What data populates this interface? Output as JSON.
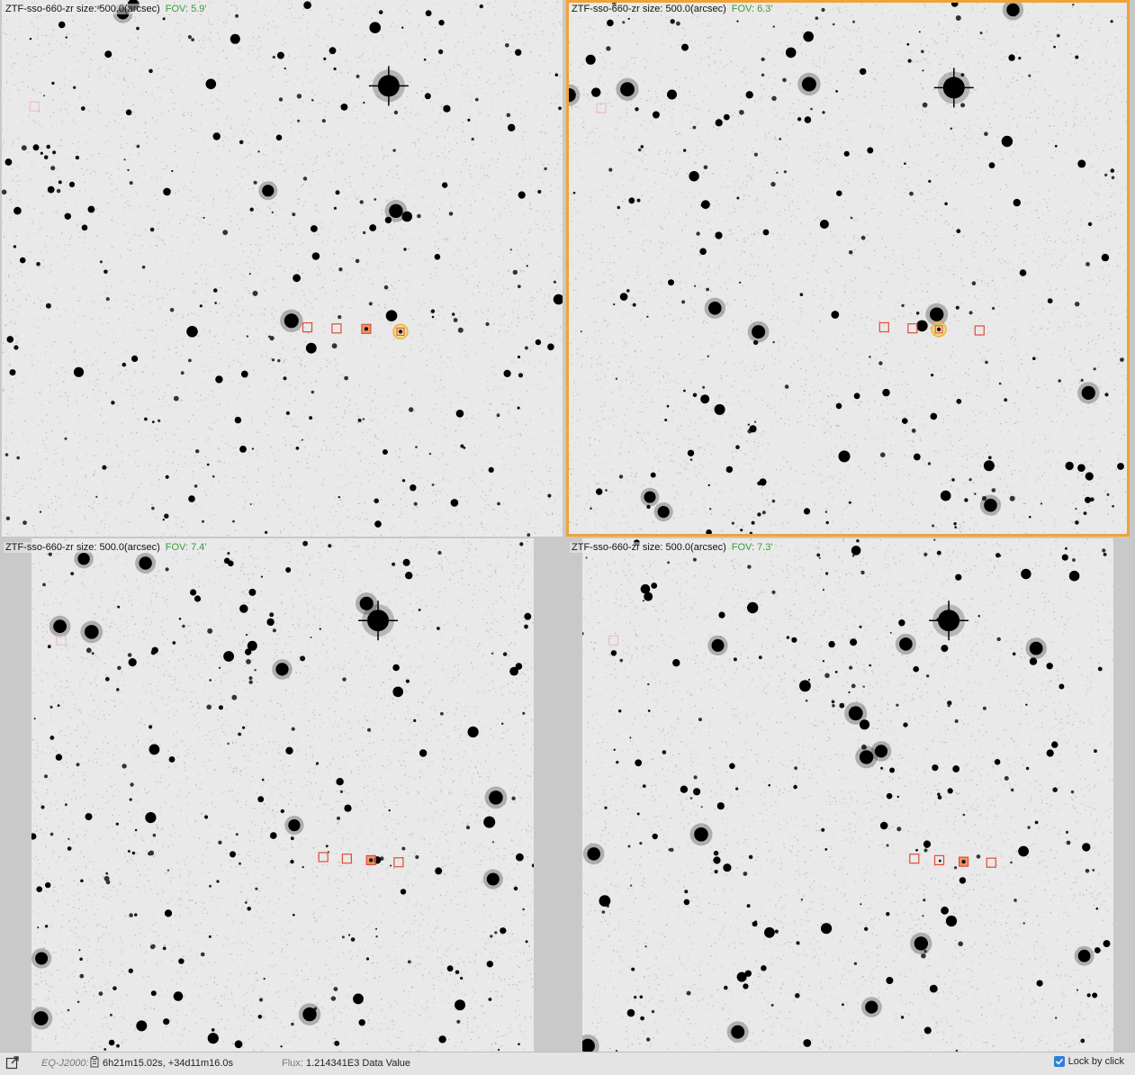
{
  "panels": [
    {
      "title": "ZTF-sso-660-zr size: 500.0(arcsec)",
      "fov": "FOV: 5.9'",
      "selected": false
    },
    {
      "title": "ZTF-sso-660-zr size: 500.0(arcsec)",
      "fov": "FOV: 6.3'",
      "selected": true
    },
    {
      "title": "ZTF-sso-660-zr size: 500.0(arcsec)",
      "fov": "FOV: 7.4'",
      "selected": false
    },
    {
      "title": "ZTF-sso-660-zr size: 500.0(arcsec)",
      "fov": "FOV: 7.3'",
      "selected": false
    }
  ],
  "status": {
    "coord_label": "EQ-J2000:",
    "coord_value": "6h21m15.02s, +34d11m16.0s",
    "flux_label": "Flux:",
    "flux_value": "1.214341E3 Data Value",
    "lock_label": "Lock by click",
    "lock_checked": true
  },
  "colors": {
    "selected_border": "#f0a23a",
    "marker": "#e04a3a",
    "highlight": "#f2d24a",
    "fov_text": "#3a9a3a"
  },
  "icons": {
    "expand": "expand-icon",
    "copy": "copy-icon",
    "check": "check-icon"
  }
}
